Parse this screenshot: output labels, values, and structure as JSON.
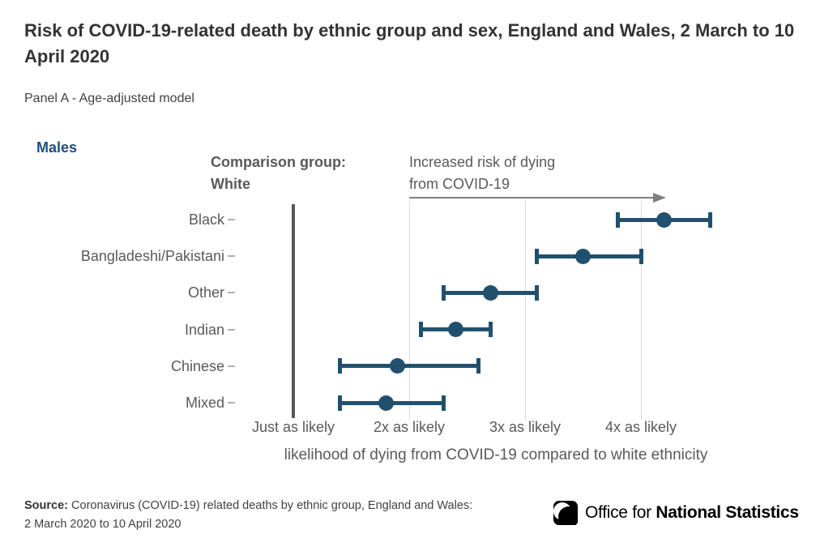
{
  "header": {
    "title": "Risk of COVID-19-related death by ethnic group and sex, England and Wales, 2 March to 10 April 2020",
    "panel": "Panel A - Age-adjusted model"
  },
  "chart_data": {
    "type": "scatter",
    "orientation": "horizontal-dot-interval",
    "group_label": "Males",
    "categories": [
      "Black",
      "Bangladeshi/Pakistani",
      "Other",
      "Indian",
      "Chinese",
      "Mixed"
    ],
    "series": [
      {
        "name": "Age-adjusted relative likelihood of COVID-19-related death vs White (Males)",
        "values": [
          4.2,
          3.5,
          2.7,
          2.4,
          1.9,
          1.8
        ],
        "ci_low": [
          3.8,
          3.1,
          2.3,
          2.1,
          1.4,
          1.4
        ],
        "ci_high": [
          4.6,
          4.0,
          3.1,
          2.7,
          2.6,
          2.3
        ]
      }
    ],
    "x_ticks": [
      {
        "value": 1,
        "label": "Just as likely"
      },
      {
        "value": 2,
        "label": "2x as likely"
      },
      {
        "value": 3,
        "label": "3x as likely"
      },
      {
        "value": 4,
        "label": "4x as likely"
      }
    ],
    "xlabel": "likelihood of dying from COVID-19 compared to white ethnicity",
    "xlim": [
      0.75,
      5.1
    ],
    "reference_line_value": 1,
    "grid": "vertical gridlines at 2x, 3x, 4x; bold reference line at 1x",
    "legend_position": "none",
    "annotations": {
      "comparison_line1": "Comparison group:",
      "comparison_line2": "White",
      "arrow_line1": "Increased risk of dying",
      "arrow_line2": "from COVID-19"
    },
    "colors": {
      "point": "#21506f",
      "group_label": "#1f4e79",
      "reference_line": "#595959",
      "gridline": "#d9d9d9",
      "arrow": "#808080"
    }
  },
  "footer": {
    "source_bold": "Source:",
    "source_rest": " Coronavirus (COVID-19) related deaths by ethnic group, England and Wales:",
    "source_line2": "2 March 2020 to 10 April 2020",
    "logo_office_for": "Office for ",
    "logo_national_statistics": "National Statistics"
  }
}
